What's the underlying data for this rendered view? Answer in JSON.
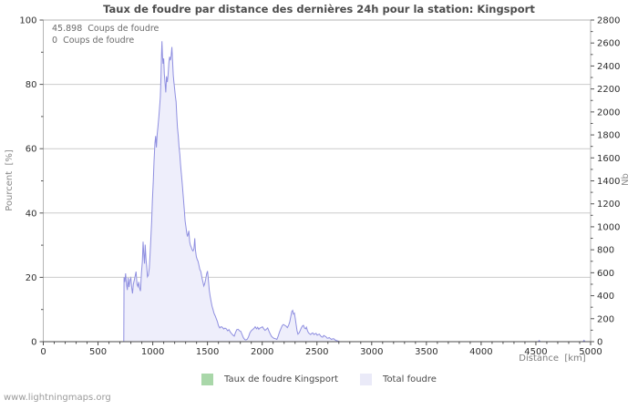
{
  "page": {
    "watermark": "www.lightningmaps.org"
  },
  "chart_data": {
    "type": "area",
    "title": "Taux de foudre par distance des dernières 24h pour la station: Kingsport",
    "xlabel": "Distance  [km]",
    "ylabel_left": "Pourcent  [%]",
    "ylabel_right": "Nb",
    "annotation_lines": [
      "45.898  Coups de foudre",
      "0  Coups de foudre"
    ],
    "x_axis": {
      "min": 0,
      "max": 5000,
      "major_step": 500,
      "minor_step": 100,
      "tick_labels": [
        "0",
        "500",
        "1000",
        "1500",
        "2000",
        "2500",
        "3000",
        "3500",
        "4000",
        "4500",
        "5000"
      ]
    },
    "y_axis_left": {
      "min": 0,
      "max": 100,
      "major_step": 20,
      "minor_step": 10,
      "tick_labels": [
        "0",
        "20",
        "40",
        "60",
        "80",
        "100"
      ]
    },
    "y_axis_right": {
      "min": 0,
      "max": 2800,
      "major_step": 200,
      "minor_step": 100,
      "tick_labels": [
        "0",
        "200",
        "400",
        "600",
        "800",
        "1000",
        "1200",
        "1400",
        "1600",
        "1800",
        "2000",
        "2200",
        "2400",
        "2600",
        "2800"
      ]
    },
    "gridlines_left_pct": [
      20,
      40,
      60,
      80,
      100
    ],
    "grid_on": true,
    "legend_position": "bottom-center",
    "colors": {
      "grid": "#cccccc",
      "border": "#b5b5b5",
      "x_axis_line": "#4a4a4a",
      "tick": "#555555",
      "tick_label": "#2e2e2e",
      "line": "#8f8fe0",
      "fill": "#eeeefb",
      "green": "#a9d7a9"
    },
    "legend": [
      {
        "label": "Taux de foudre Kingsport",
        "swatch_color": "#a9d7a9"
      },
      {
        "label": "Total foudre",
        "swatch_color": "#eaeaf8"
      }
    ],
    "series": [
      {
        "name": "Taux de foudre Kingsport",
        "axis": "left",
        "type": "line",
        "comment_visible_value": "0 percent everywhere",
        "points": [
          [
            0,
            0
          ],
          [
            5000,
            0
          ]
        ]
      },
      {
        "name": "Total foudre",
        "axis": "right",
        "type": "area",
        "points": [
          [
            0,
            0
          ],
          [
            700,
            0
          ],
          [
            735,
            0
          ],
          [
            738,
            560
          ],
          [
            745,
            520
          ],
          [
            752,
            595
          ],
          [
            760,
            500
          ],
          [
            768,
            450
          ],
          [
            775,
            555
          ],
          [
            783,
            475
          ],
          [
            793,
            540
          ],
          [
            800,
            555
          ],
          [
            808,
            470
          ],
          [
            815,
            420
          ],
          [
            823,
            500
          ],
          [
            831,
            535
          ],
          [
            840,
            575
          ],
          [
            848,
            610
          ],
          [
            856,
            500
          ],
          [
            864,
            480
          ],
          [
            872,
            520
          ],
          [
            880,
            465
          ],
          [
            888,
            440
          ],
          [
            897,
            600
          ],
          [
            905,
            700
          ],
          [
            912,
            870
          ],
          [
            918,
            760
          ],
          [
            925,
            680
          ],
          [
            931,
            845
          ],
          [
            938,
            720
          ],
          [
            945,
            650
          ],
          [
            952,
            565
          ],
          [
            960,
            580
          ],
          [
            968,
            640
          ],
          [
            975,
            750
          ],
          [
            982,
            880
          ],
          [
            990,
            1050
          ],
          [
            997,
            1230
          ],
          [
            1005,
            1400
          ],
          [
            1012,
            1570
          ],
          [
            1020,
            1730
          ],
          [
            1027,
            1790
          ],
          [
            1033,
            1690
          ],
          [
            1040,
            1800
          ],
          [
            1048,
            1880
          ],
          [
            1055,
            1950
          ],
          [
            1062,
            2030
          ],
          [
            1069,
            2130
          ],
          [
            1075,
            2300
          ],
          [
            1080,
            2500
          ],
          [
            1084,
            2615
          ],
          [
            1089,
            2480
          ],
          [
            1094,
            2420
          ],
          [
            1100,
            2465
          ],
          [
            1106,
            2330
          ],
          [
            1112,
            2250
          ],
          [
            1119,
            2170
          ],
          [
            1126,
            2310
          ],
          [
            1133,
            2260
          ],
          [
            1140,
            2320
          ],
          [
            1147,
            2430
          ],
          [
            1154,
            2480
          ],
          [
            1161,
            2450
          ],
          [
            1168,
            2490
          ],
          [
            1175,
            2565
          ],
          [
            1181,
            2450
          ],
          [
            1187,
            2320
          ],
          [
            1193,
            2260
          ],
          [
            1200,
            2200
          ],
          [
            1207,
            2130
          ],
          [
            1213,
            2090
          ],
          [
            1220,
            1960
          ],
          [
            1226,
            1865
          ],
          [
            1233,
            1790
          ],
          [
            1240,
            1700
          ],
          [
            1247,
            1630
          ],
          [
            1254,
            1540
          ],
          [
            1261,
            1470
          ],
          [
            1268,
            1390
          ],
          [
            1275,
            1310
          ],
          [
            1282,
            1220
          ],
          [
            1289,
            1140
          ],
          [
            1296,
            1050
          ],
          [
            1303,
            1000
          ],
          [
            1310,
            950
          ],
          [
            1317,
            915
          ],
          [
            1324,
            940
          ],
          [
            1330,
            965
          ],
          [
            1337,
            870
          ],
          [
            1344,
            840
          ],
          [
            1352,
            820
          ],
          [
            1360,
            800
          ],
          [
            1368,
            790
          ],
          [
            1376,
            810
          ],
          [
            1384,
            900
          ],
          [
            1390,
            800
          ],
          [
            1398,
            740
          ],
          [
            1406,
            715
          ],
          [
            1414,
            700
          ],
          [
            1422,
            665
          ],
          [
            1430,
            630
          ],
          [
            1440,
            610
          ],
          [
            1450,
            555
          ],
          [
            1458,
            520
          ],
          [
            1466,
            485
          ],
          [
            1475,
            505
          ],
          [
            1484,
            545
          ],
          [
            1492,
            590
          ],
          [
            1500,
            615
          ],
          [
            1508,
            540
          ],
          [
            1516,
            450
          ],
          [
            1524,
            400
          ],
          [
            1532,
            355
          ],
          [
            1541,
            310
          ],
          [
            1550,
            280
          ],
          [
            1560,
            245
          ],
          [
            1570,
            225
          ],
          [
            1580,
            200
          ],
          [
            1590,
            175
          ],
          [
            1600,
            140
          ],
          [
            1612,
            120
          ],
          [
            1624,
            130
          ],
          [
            1636,
            125
          ],
          [
            1648,
            110
          ],
          [
            1660,
            118
          ],
          [
            1672,
            112
          ],
          [
            1684,
            95
          ],
          [
            1696,
            105
          ],
          [
            1708,
            85
          ],
          [
            1720,
            70
          ],
          [
            1732,
            58
          ],
          [
            1744,
            48
          ],
          [
            1756,
            80
          ],
          [
            1768,
            105
          ],
          [
            1780,
            108
          ],
          [
            1792,
            95
          ],
          [
            1804,
            90
          ],
          [
            1816,
            62
          ],
          [
            1828,
            35
          ],
          [
            1840,
            18
          ],
          [
            1852,
            15
          ],
          [
            1864,
            22
          ],
          [
            1876,
            45
          ],
          [
            1888,
            78
          ],
          [
            1900,
            95
          ],
          [
            1912,
            105
          ],
          [
            1924,
            115
          ],
          [
            1936,
            130
          ],
          [
            1948,
            112
          ],
          [
            1958,
            125
          ],
          [
            1968,
            108
          ],
          [
            1978,
            118
          ],
          [
            1990,
            122
          ],
          [
            2002,
            130
          ],
          [
            2014,
            112
          ],
          [
            2026,
            98
          ],
          [
            2038,
            108
          ],
          [
            2050,
            120
          ],
          [
            2062,
            92
          ],
          [
            2074,
            65
          ],
          [
            2086,
            45
          ],
          [
            2098,
            35
          ],
          [
            2110,
            28
          ],
          [
            2122,
            25
          ],
          [
            2134,
            20
          ],
          [
            2146,
            48
          ],
          [
            2158,
            85
          ],
          [
            2170,
            112
          ],
          [
            2182,
            140
          ],
          [
            2194,
            150
          ],
          [
            2206,
            142
          ],
          [
            2218,
            135
          ],
          [
            2230,
            122
          ],
          [
            2242,
            145
          ],
          [
            2252,
            175
          ],
          [
            2262,
            225
          ],
          [
            2270,
            262
          ],
          [
            2278,
            272
          ],
          [
            2286,
            240
          ],
          [
            2294,
            248
          ],
          [
            2302,
            200
          ],
          [
            2310,
            150
          ],
          [
            2318,
            95
          ],
          [
            2326,
            65
          ],
          [
            2336,
            75
          ],
          [
            2346,
            95
          ],
          [
            2356,
            118
          ],
          [
            2366,
            135
          ],
          [
            2376,
            142
          ],
          [
            2386,
            118
          ],
          [
            2396,
            112
          ],
          [
            2404,
            126
          ],
          [
            2412,
            100
          ],
          [
            2422,
            78
          ],
          [
            2432,
            70
          ],
          [
            2442,
            62
          ],
          [
            2452,
            72
          ],
          [
            2462,
            76
          ],
          [
            2472,
            62
          ],
          [
            2482,
            68
          ],
          [
            2492,
            72
          ],
          [
            2502,
            56
          ],
          [
            2512,
            62
          ],
          [
            2522,
            66
          ],
          [
            2532,
            52
          ],
          [
            2542,
            42
          ],
          [
            2552,
            40
          ],
          [
            2562,
            54
          ],
          [
            2572,
            48
          ],
          [
            2582,
            44
          ],
          [
            2592,
            32
          ],
          [
            2602,
            30
          ],
          [
            2612,
            36
          ],
          [
            2622,
            28
          ],
          [
            2632,
            20
          ],
          [
            2642,
            24
          ],
          [
            2652,
            26
          ],
          [
            2662,
            18
          ],
          [
            2672,
            12
          ],
          [
            2682,
            8
          ],
          [
            2692,
            6
          ],
          [
            2702,
            2
          ],
          [
            2712,
            0
          ],
          [
            2750,
            0
          ],
          [
            3000,
            0
          ],
          [
            4000,
            0
          ],
          [
            4520,
            0
          ],
          [
            4530,
            10
          ],
          [
            4540,
            0
          ],
          [
            4930,
            0
          ],
          [
            4940,
            12
          ],
          [
            4950,
            0
          ],
          [
            5000,
            0
          ]
        ]
      }
    ]
  }
}
